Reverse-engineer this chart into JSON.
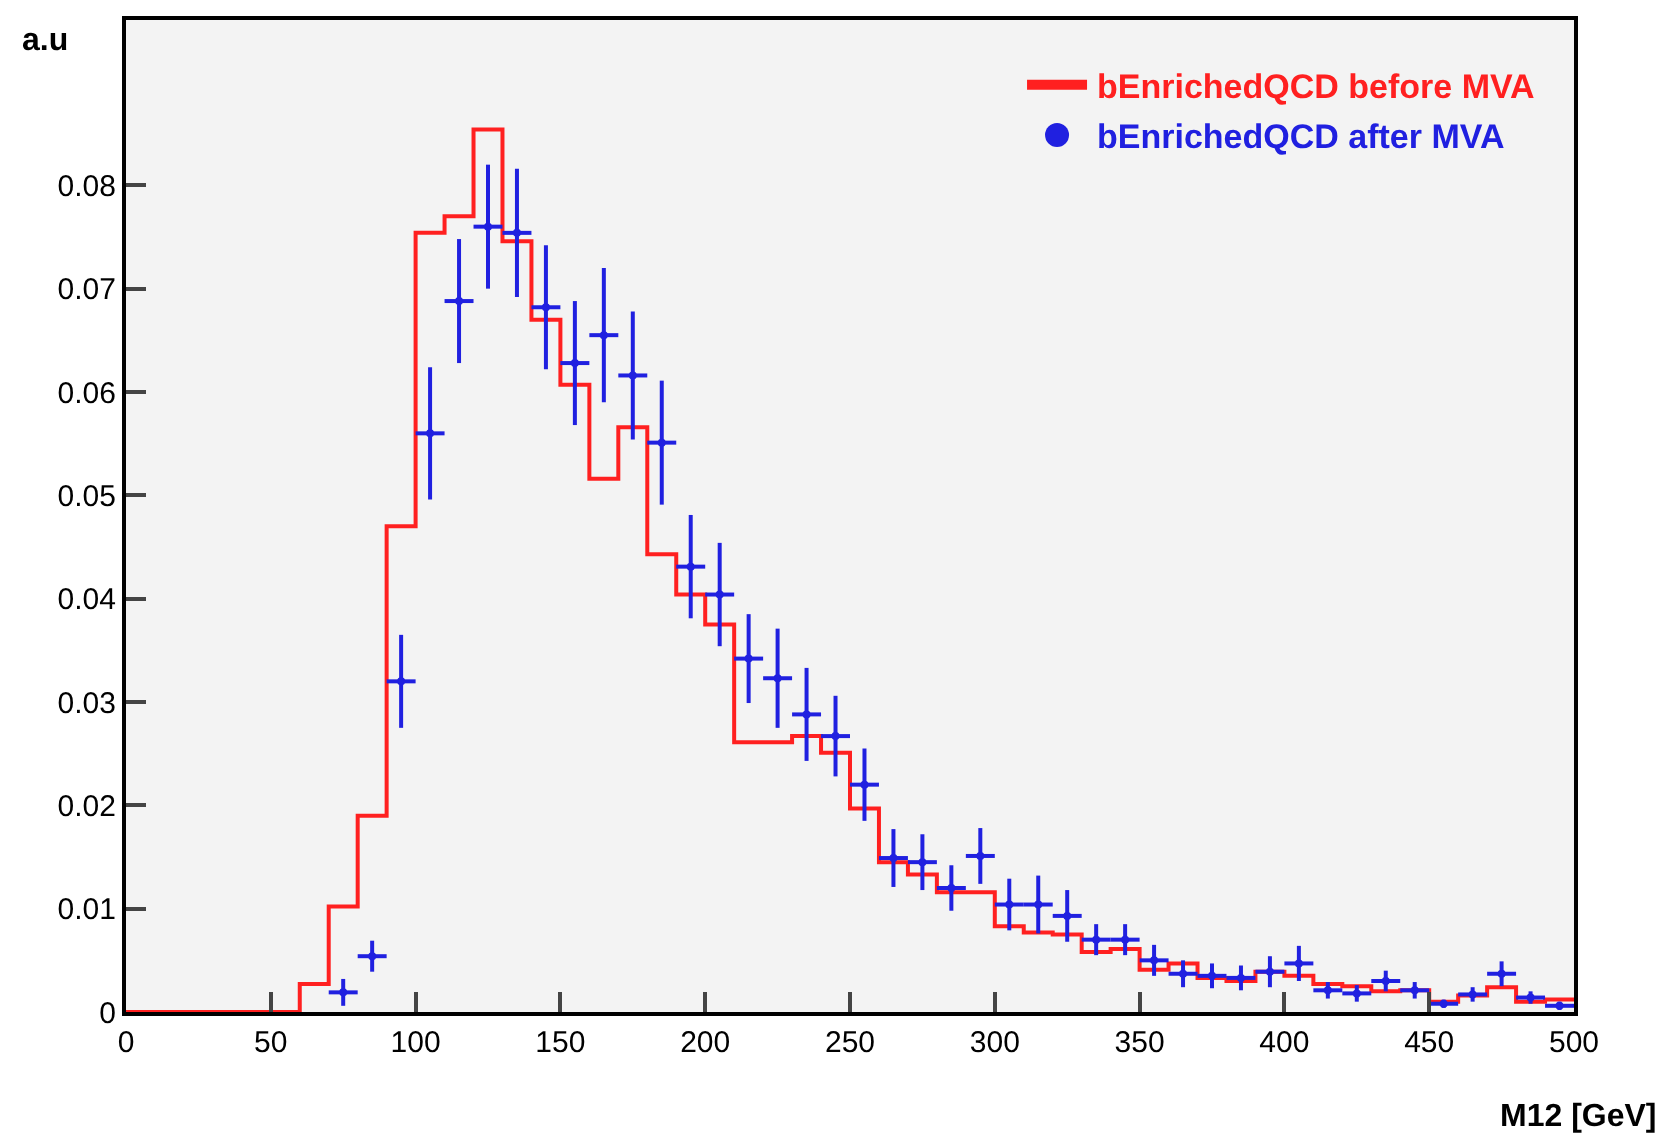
{
  "chart_data": {
    "type": "histogram",
    "xlabel": "M12 [GeV]",
    "ylabel": "a.u",
    "bins": [
      0,
      10,
      20,
      30,
      40,
      50,
      60,
      70,
      80,
      90,
      100,
      110,
      120,
      130,
      140,
      150,
      160,
      170,
      180,
      190,
      200,
      210,
      220,
      230,
      240,
      250,
      260,
      270,
      280,
      290,
      300,
      310,
      320,
      330,
      340,
      350,
      360,
      370,
      380,
      390,
      400,
      410,
      420,
      430,
      440,
      450,
      460,
      470,
      480,
      490,
      500
    ],
    "series": [
      {
        "name": "bEnrichedQCD before MVA",
        "color": "#ff2020",
        "values": [
          0,
          0,
          0,
          0,
          0,
          0,
          0.0027,
          0.0102,
          0.019,
          0.047,
          0.0754,
          0.077,
          0.0854,
          0.0746,
          0.067,
          0.0607,
          0.0516,
          0.0566,
          0.0443,
          0.0404,
          0.0375,
          0.0261,
          0.0261,
          0.0267,
          0.0251,
          0.0197,
          0.0145,
          0.0133,
          0.0116,
          0.0116,
          0.0083,
          0.0077,
          0.0075,
          0.0058,
          0.0061,
          0.0041,
          0.0047,
          0.0033,
          0.003,
          0.0039,
          0.0035,
          0.0027,
          0.0025,
          0.002,
          0.0021,
          0.001,
          0.0016,
          0.0024,
          0.001,
          0.0012
        ]
      },
      {
        "name": "bEnrichedQCD after MVA",
        "color": "#2020e0",
        "type": "scatter",
        "x": [
          75,
          85,
          95,
          105,
          115,
          125,
          135,
          145,
          155,
          165,
          175,
          185,
          195,
          205,
          215,
          225,
          235,
          245,
          255,
          265,
          275,
          285,
          295,
          305,
          315,
          325,
          335,
          345,
          355,
          365,
          375,
          385,
          395,
          405,
          415,
          425,
          435,
          445,
          455,
          465,
          475,
          485,
          495
        ],
        "values": [
          0.0019,
          0.0054,
          0.032,
          0.056,
          0.0688,
          0.076,
          0.0754,
          0.0682,
          0.0628,
          0.0655,
          0.0616,
          0.0551,
          0.0431,
          0.0404,
          0.0342,
          0.0323,
          0.0288,
          0.0267,
          0.022,
          0.0149,
          0.0145,
          0.012,
          0.0151,
          0.0104,
          0.0104,
          0.0093,
          0.007,
          0.007,
          0.005,
          0.0037,
          0.0035,
          0.0033,
          0.0039,
          0.0047,
          0.0021,
          0.0018,
          0.003,
          0.0021,
          0.0008,
          0.0017,
          0.0037,
          0.0014,
          0.0006
        ],
        "errors": [
          0.0013,
          0.0015,
          0.0045,
          0.0064,
          0.006,
          0.006,
          0.0062,
          0.006,
          0.006,
          0.0065,
          0.0062,
          0.006,
          0.005,
          0.005,
          0.0043,
          0.0048,
          0.0045,
          0.0039,
          0.0035,
          0.0028,
          0.0027,
          0.0022,
          0.0027,
          0.0025,
          0.0028,
          0.0025,
          0.0015,
          0.0015,
          0.0015,
          0.0013,
          0.0012,
          0.0012,
          0.0015,
          0.0017,
          0.0008,
          0.0008,
          0.001,
          0.0008,
          0.0004,
          0.0007,
          0.0012,
          0.0006,
          0.0004
        ],
        "xerrors": [
          5,
          5,
          5,
          5,
          5,
          5,
          5,
          5,
          5,
          5,
          5,
          5,
          5,
          5,
          5,
          5,
          5,
          5,
          5,
          5,
          5,
          5,
          5,
          5,
          5,
          5,
          5,
          5,
          5,
          5,
          5,
          5,
          5,
          5,
          5,
          5,
          5,
          5,
          5,
          5,
          5,
          5,
          5
        ]
      }
    ],
    "xlim": [
      0,
      500
    ],
    "xticks": [
      0,
      50,
      100,
      150,
      200,
      250,
      300,
      350,
      400,
      450,
      500
    ],
    "ylim": [
      0,
      0.096
    ],
    "yticks": [
      0,
      0.01,
      0.02,
      0.03,
      0.04,
      0.05,
      0.06,
      0.07,
      0.08
    ],
    "grid": false,
    "legend": "top right"
  }
}
